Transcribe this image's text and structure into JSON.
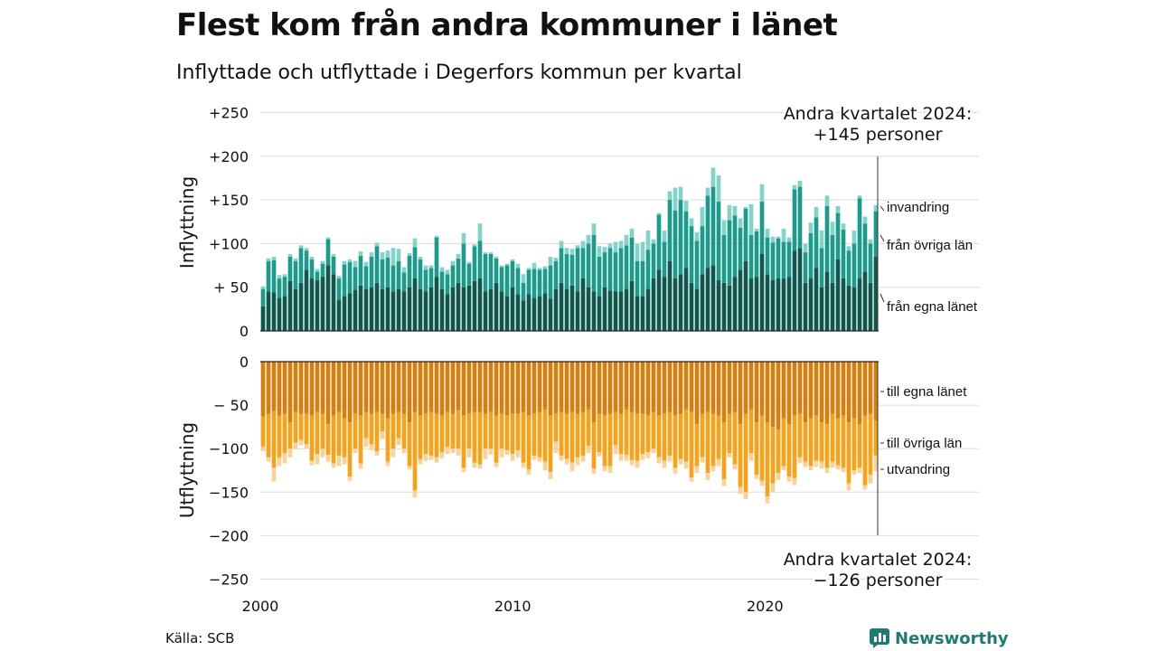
{
  "title": "Flest kom från andra kommuner i länet",
  "subtitle": "Inflyttade och utflyttade i Degerfors kommun per kvartal",
  "source": "Källa: SCB",
  "brand": {
    "name": "Newsworthy",
    "icon": "bar-chart-logo-icon",
    "color": "#1f7a74"
  },
  "chart_data": {
    "type": "bar",
    "stacked": true,
    "grid": true,
    "x_axis": {
      "ticks": [
        "2000",
        "2010",
        "2020"
      ],
      "range_years": [
        2000,
        2024.5
      ]
    },
    "top_panel": {
      "ylabel": "Inflyttning",
      "ylim": [
        0,
        250
      ],
      "ticks": [
        "+250",
        "+200",
        "+150",
        "+100",
        "+ 50",
        "0"
      ],
      "colors": {
        "från egna länet": "#10574e",
        "från övriga län": "#1d9a8c",
        "invandring": "#84d3c9"
      },
      "annotation": [
        "Andra kvartalet 2024:",
        "+145 personer"
      ],
      "legend": [
        "invandring",
        "från övriga län",
        "från egna länet"
      ],
      "series": {
        "fran_egna_lanet": [
          28,
          45,
          44,
          38,
          40,
          57,
          48,
          55,
          70,
          60,
          58,
          62,
          75,
          65,
          36,
          40,
          43,
          47,
          52,
          48,
          50,
          55,
          48,
          50,
          45,
          48,
          45,
          50,
          60,
          48,
          45,
          50,
          62,
          48,
          42,
          50,
          55,
          50,
          52,
          57,
          60,
          45,
          48,
          55,
          45,
          40,
          50,
          42,
          35,
          42,
          38,
          40,
          43,
          37,
          48,
          55,
          48,
          52,
          45,
          60,
          50,
          45,
          40,
          50,
          46,
          45,
          45,
          48,
          57,
          40,
          40,
          48,
          60,
          70,
          62,
          80,
          60,
          65,
          72,
          55,
          48,
          65,
          72,
          75,
          58,
          55,
          52,
          62,
          70,
          80,
          60,
          62,
          88,
          65,
          58,
          60,
          60,
          62,
          92,
          95,
          55,
          60,
          72,
          50,
          68,
          55,
          82,
          60,
          52,
          50,
          60,
          68,
          55,
          85
        ],
        "fran_ovriga_lan": [
          20,
          35,
          37,
          22,
          22,
          28,
          32,
          40,
          22,
          22,
          10,
          15,
          30,
          20,
          24,
          36,
          36,
          26,
          34,
          26,
          35,
          42,
          34,
          34,
          30,
          32,
          22,
          36,
          36,
          34,
          25,
          22,
          45,
          20,
          23,
          25,
          28,
          50,
          25,
          40,
          43,
          43,
          40,
          28,
          28,
          35,
          30,
          30,
          20,
          28,
          33,
          30,
          28,
          38,
          32,
          40,
          40,
          35,
          50,
          35,
          50,
          65,
          45,
          40,
          49,
          45,
          50,
          50,
          50,
          40,
          40,
          45,
          40,
          63,
          40,
          70,
          78,
          85,
          65,
          65,
          55,
          55,
          83,
          90,
          90,
          55,
          75,
          70,
          48,
          60,
          50,
          52,
          60,
          42,
          43,
          46,
          42,
          40,
          70,
          70,
          35,
          52,
          58,
          45,
          75,
          55,
          53,
          56,
          40,
          50,
          92,
          55,
          45,
          52
        ],
        "invandring": [
          3,
          3,
          4,
          4,
          3,
          3,
          3,
          3,
          3,
          3,
          3,
          3,
          2,
          3,
          3,
          4,
          3,
          7,
          5,
          5,
          5,
          4,
          8,
          8,
          20,
          14,
          6,
          3,
          10,
          3,
          5,
          3,
          2,
          5,
          5,
          5,
          5,
          12,
          2,
          2,
          20,
          2,
          2,
          2,
          2,
          2,
          2,
          5,
          10,
          2,
          7,
          2,
          3,
          10,
          4,
          8,
          7,
          7,
          3,
          8,
          10,
          13,
          12,
          6,
          5,
          12,
          8,
          12,
          10,
          20,
          22,
          22,
          5,
          2,
          13,
          10,
          26,
          15,
          12,
          9,
          10,
          22,
          9,
          22,
          30,
          17,
          17,
          11,
          11,
          2,
          35,
          3,
          20,
          10,
          7,
          2,
          15,
          5,
          5,
          7,
          10,
          12,
          12,
          20,
          12,
          15,
          8,
          7,
          5,
          15,
          3,
          8,
          5,
          7
        ]
      }
    },
    "bottom_panel": {
      "ylabel": "Utflyttning",
      "ylim": [
        -250,
        0
      ],
      "ticks": [
        "0",
        "− 50",
        "−100",
        "−150",
        "−200",
        "−250"
      ],
      "colors": {
        "till egna länet": "#d67e0f",
        "till övriga län": "#f6a21a",
        "utvandring": "#f7d29a"
      },
      "annotation": [
        "Andra kvartalet 2024:",
        "−126 personer"
      ],
      "legend": [
        "till egna länet",
        "till övriga län",
        "utvandring"
      ],
      "series": {
        "till_egna_lanet": [
          -63,
          -60,
          -57,
          -62,
          -60,
          -70,
          -58,
          -60,
          -60,
          -62,
          -58,
          -60,
          -72,
          -62,
          -58,
          -65,
          -70,
          -60,
          -62,
          -58,
          -60,
          -58,
          -60,
          -65,
          -60,
          -58,
          -60,
          -70,
          -58,
          -62,
          -60,
          -58,
          -60,
          -62,
          -58,
          -60,
          -56,
          -62,
          -60,
          -58,
          -58,
          -60,
          -58,
          -62,
          -60,
          -62,
          -60,
          -60,
          -58,
          -62,
          -60,
          -58,
          -55,
          -62,
          -60,
          -58,
          -60,
          -58,
          -60,
          -58,
          -55,
          -70,
          -60,
          -62,
          -60,
          -58,
          -60,
          -55,
          -58,
          -60,
          -60,
          -62,
          -58,
          -62,
          -60,
          -58,
          -62,
          -60,
          -55,
          -58,
          -72,
          -60,
          -58,
          -60,
          -62,
          -70,
          -60,
          -58,
          -72,
          -60,
          -55,
          -70,
          -62,
          -70,
          -75,
          -78,
          -65,
          -72,
          -62,
          -60,
          -70,
          -65,
          -62,
          -70,
          -72,
          -60,
          -65,
          -62,
          -70,
          -65,
          -72,
          -62,
          -60,
          -68
        ],
        "till_ovriga_lan": [
          -35,
          -50,
          -65,
          -48,
          -45,
          -30,
          -35,
          -30,
          -35,
          -52,
          -48,
          -40,
          -35,
          -55,
          -50,
          -45,
          -62,
          -40,
          -55,
          -30,
          -35,
          -45,
          -20,
          -50,
          -40,
          -30,
          -40,
          -50,
          -90,
          -50,
          -46,
          -50,
          -50,
          -42,
          -40,
          -40,
          -44,
          -60,
          -40,
          -58,
          -60,
          -40,
          -42,
          -54,
          -40,
          -40,
          -46,
          -42,
          -58,
          -62,
          -48,
          -52,
          -60,
          -65,
          -32,
          -50,
          -52,
          -58,
          -50,
          -50,
          -42,
          -53,
          -44,
          -58,
          -60,
          -38,
          -46,
          -52,
          -55,
          -54,
          -46,
          -42,
          -42,
          -48,
          -54,
          -50,
          -60,
          -52,
          -60,
          -75,
          -48,
          -50,
          -70,
          -60,
          -50,
          -65,
          -45,
          -60,
          -72,
          -90,
          -50,
          -60,
          -75,
          -85,
          -65,
          -50,
          -55,
          -60,
          -72,
          -50,
          -45,
          -55,
          -52,
          -45,
          -50,
          -55,
          -54,
          -60,
          -70,
          -60,
          -50,
          -80,
          -70,
          -40
        ],
        "utvandring": [
          -5,
          -5,
          -16,
          -10,
          -12,
          -10,
          -8,
          -6,
          -5,
          -5,
          -12,
          -10,
          -8,
          -5,
          -12,
          -8,
          -5,
          -5,
          -6,
          -10,
          -7,
          -5,
          -9,
          -5,
          -10,
          -8,
          -5,
          -4,
          -8,
          -6,
          -8,
          -5,
          -6,
          -7,
          -8,
          -5,
          -8,
          -5,
          -10,
          -6,
          -5,
          -12,
          -7,
          -5,
          -10,
          -5,
          -8,
          -8,
          -6,
          -6,
          -5,
          -5,
          -10,
          -8,
          -13,
          -6,
          -6,
          -10,
          -9,
          -7,
          -8,
          -6,
          -5,
          -6,
          -8,
          -10,
          -8,
          -7,
          -6,
          -8,
          -7,
          -7,
          -5,
          -7,
          -8,
          -7,
          -7,
          -6,
          -8,
          -5,
          -8,
          -6,
          -8,
          -6,
          -8,
          -8,
          -5,
          -6,
          -8,
          -8,
          -9,
          -5,
          -6,
          -8,
          -10,
          -8,
          -5,
          -6,
          -8,
          -7,
          -6,
          -5,
          -7,
          -8,
          -6,
          -7,
          -5,
          -5,
          -8,
          -5,
          -6,
          -5,
          -10,
          -18
        ]
      }
    }
  }
}
